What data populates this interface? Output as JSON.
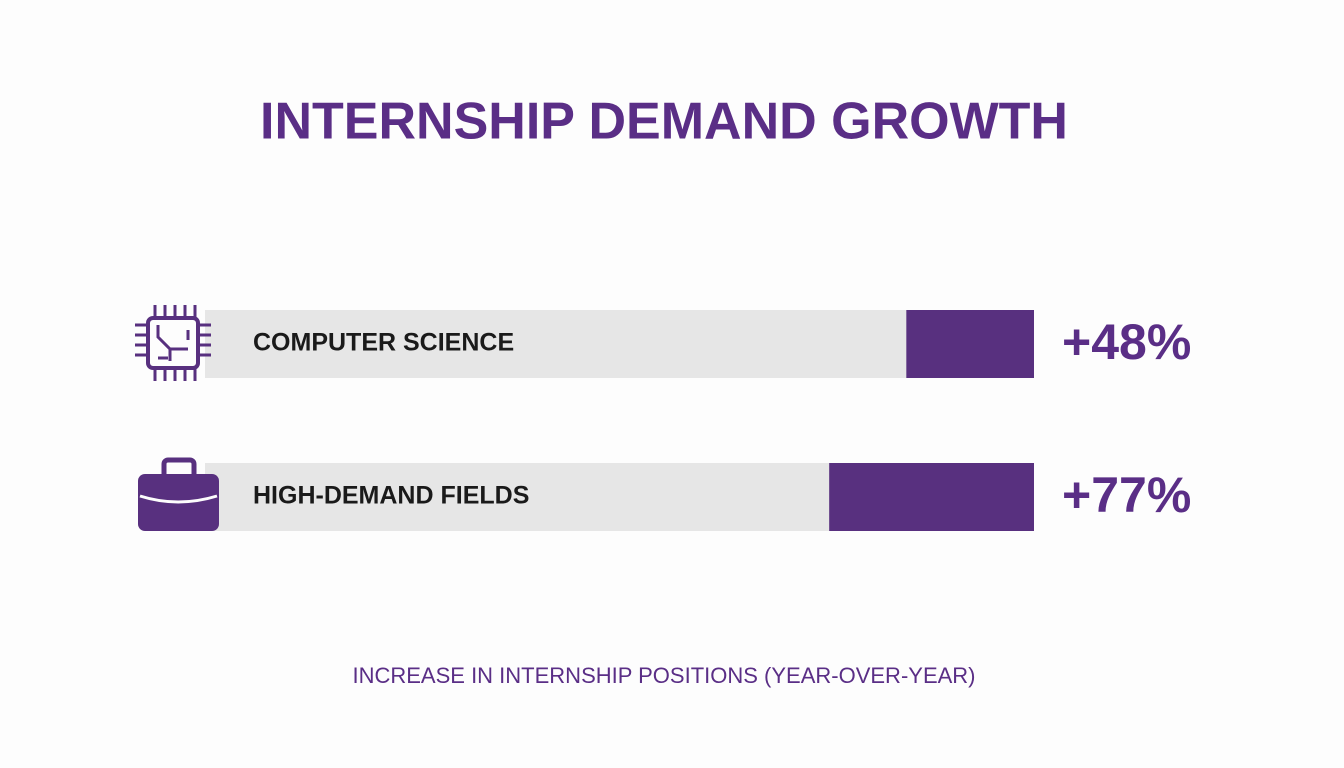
{
  "chart_data": {
    "type": "bar",
    "orientation": "horizontal",
    "title": "INTERNSHIP DEMAND GROWTH",
    "categories": [
      "COMPUTER SCIENCE",
      "HIGH-DEMAND FIELDS"
    ],
    "values": [
      48,
      77
    ],
    "value_labels": [
      "+48%",
      "+77%"
    ],
    "color": "#58307f",
    "caption": "INCREASE IN INTERNSHIP POSITIONS (YEAR-OVER-YEAR)"
  }
}
